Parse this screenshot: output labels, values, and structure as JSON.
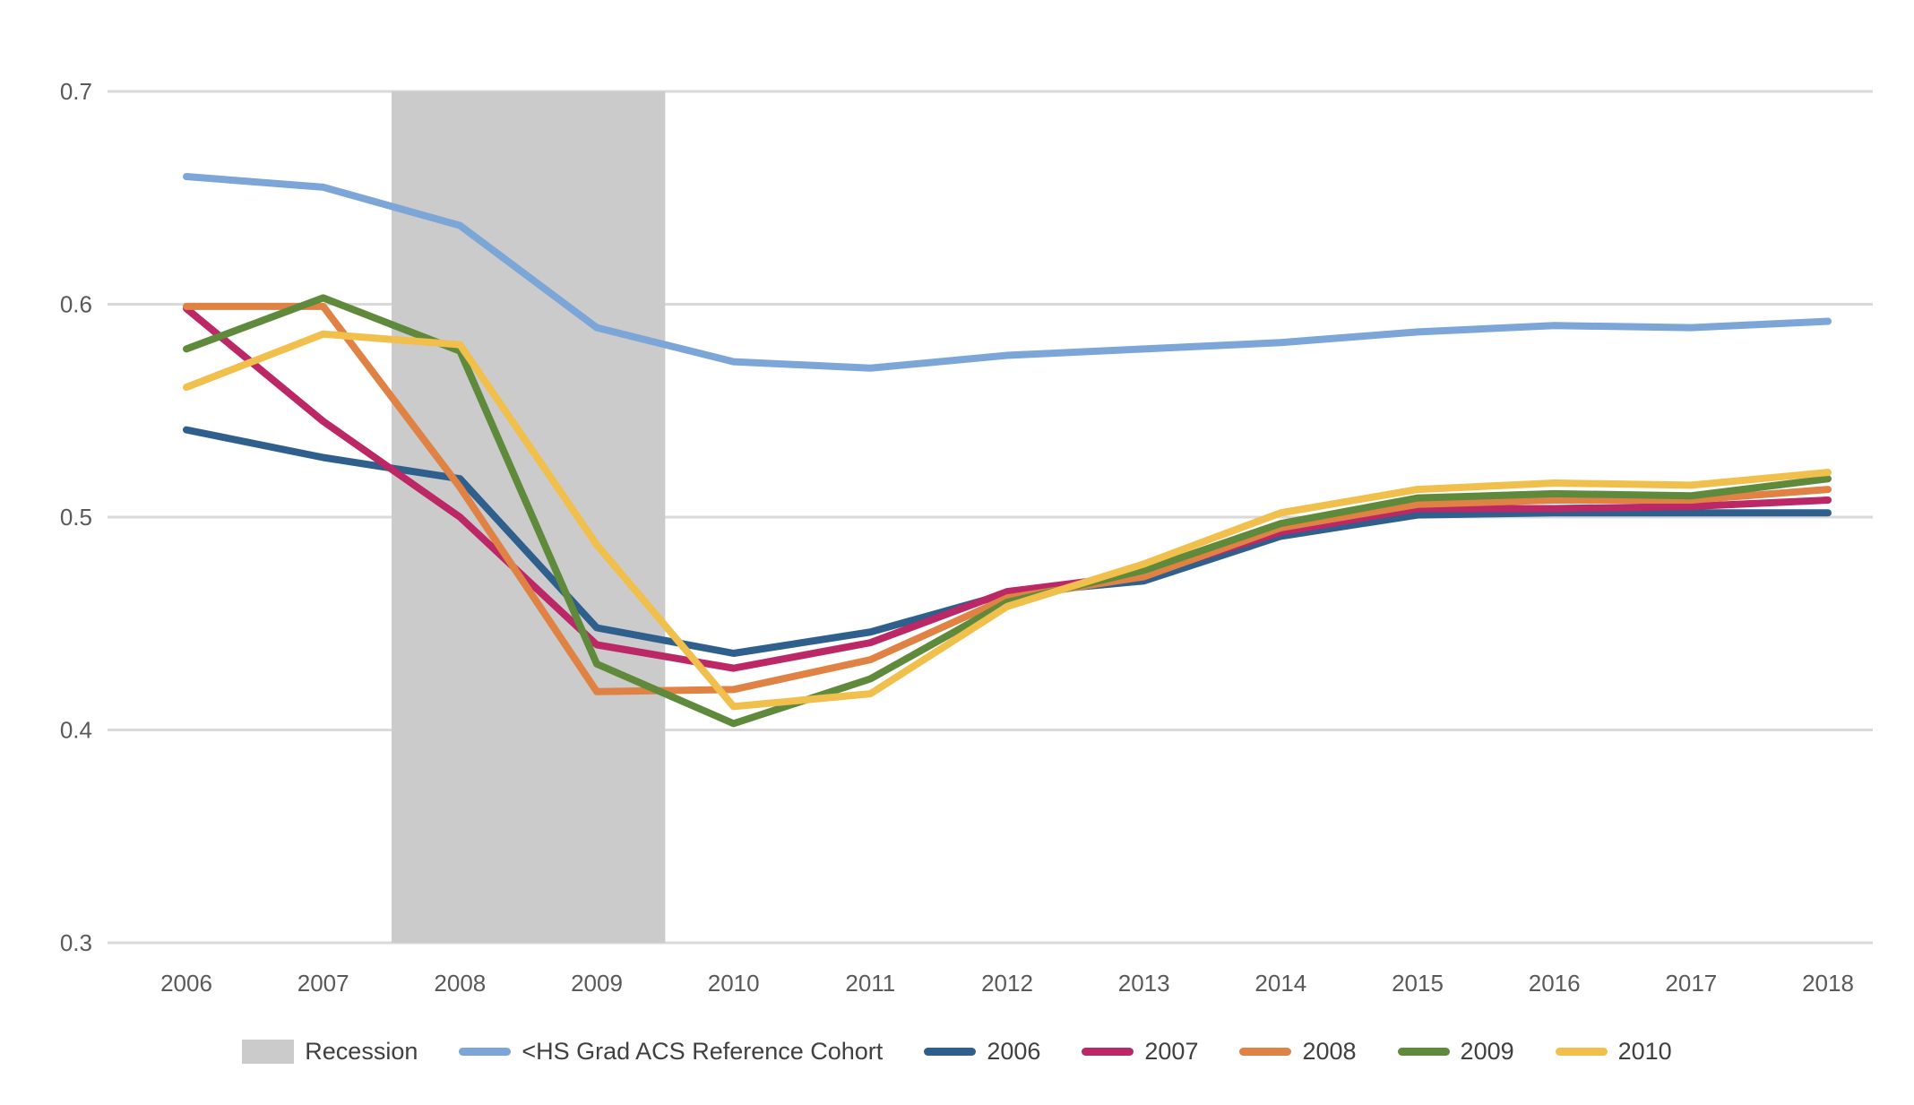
{
  "chart_data": {
    "type": "line",
    "x": [
      2006,
      2007,
      2008,
      2009,
      2010,
      2011,
      2012,
      2013,
      2014,
      2015,
      2016,
      2017,
      2018
    ],
    "x_tick_labels": [
      "2006",
      "2007",
      "2008",
      "2009",
      "2010",
      "2011",
      "2012",
      "2013",
      "2014",
      "2015",
      "2016",
      "2017",
      "2018"
    ],
    "yticks": [
      0.7,
      0.6,
      0.5,
      0.4,
      0.3
    ],
    "ytick_labels": [
      "0.7",
      "0.6",
      "0.5",
      "0.4",
      "0.3"
    ],
    "ylim": [
      0.3,
      0.7
    ],
    "grid": "horizontal",
    "legend_position": "bottom",
    "recession_band": {
      "label": "Recession",
      "x_start": 2007.5,
      "x_end": 2009.5,
      "color": "#CCCBCB"
    },
    "series": [
      {
        "name": "<HS Grad ACS Reference Cohort",
        "color": "#7CA5D8",
        "values": [
          0.66,
          0.655,
          0.637,
          0.589,
          0.573,
          0.57,
          0.576,
          0.579,
          0.582,
          0.587,
          0.59,
          0.589,
          0.592
        ]
      },
      {
        "name": "2006",
        "color": "#2F5F8C",
        "values": [
          0.541,
          0.528,
          0.518,
          0.448,
          0.436,
          0.446,
          0.464,
          0.47,
          0.491,
          0.501,
          0.502,
          0.502,
          0.502
        ]
      },
      {
        "name": "2007",
        "color": "#BC2766",
        "values": [
          0.598,
          0.545,
          0.5,
          0.44,
          0.429,
          0.441,
          0.465,
          0.473,
          0.493,
          0.504,
          0.504,
          0.505,
          0.508
        ]
      },
      {
        "name": "2008",
        "color": "#DF8244",
        "values": [
          0.599,
          0.599,
          0.514,
          0.418,
          0.419,
          0.433,
          0.462,
          0.472,
          0.495,
          0.506,
          0.508,
          0.508,
          0.513
        ]
      },
      {
        "name": "2009",
        "color": "#5F8A3C",
        "values": [
          0.579,
          0.603,
          0.578,
          0.431,
          0.403,
          0.424,
          0.46,
          0.475,
          0.497,
          0.509,
          0.511,
          0.51,
          0.518
        ]
      },
      {
        "name": "2010",
        "color": "#F0BF4C",
        "values": [
          0.561,
          0.586,
          0.581,
          0.487,
          0.411,
          0.417,
          0.458,
          0.478,
          0.502,
          0.513,
          0.516,
          0.515,
          0.521
        ]
      }
    ],
    "style": {
      "gridline_color": "#D9D9D9",
      "axis_tick_color": "#595959",
      "legend_text_color": "#404040",
      "line_width": 8
    }
  }
}
